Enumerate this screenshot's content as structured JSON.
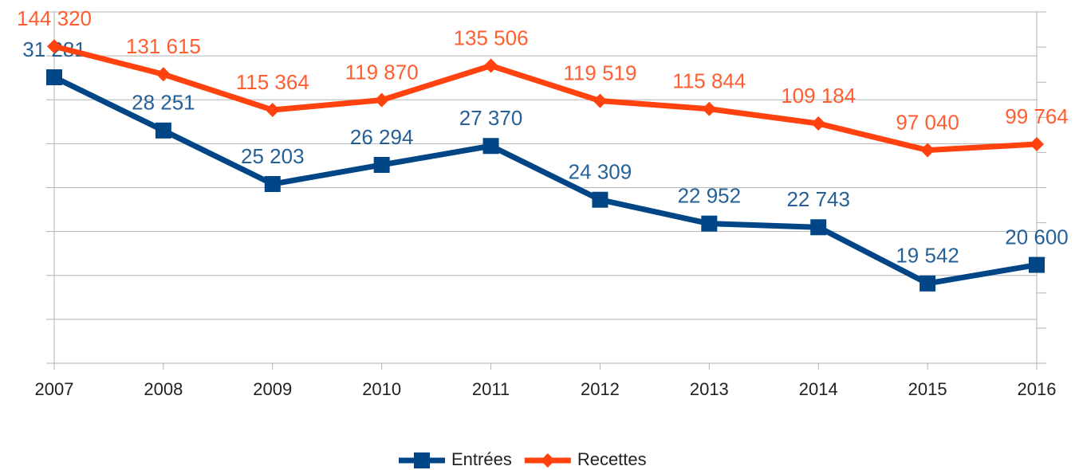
{
  "chart_data": {
    "type": "line",
    "categories": [
      "2007",
      "2008",
      "2009",
      "2010",
      "2011",
      "2012",
      "2013",
      "2014",
      "2015",
      "2016"
    ],
    "series": [
      {
        "name": "Entrées",
        "color": "#004586",
        "marker": "square",
        "values": [
          31281,
          28251,
          25203,
          26294,
          27370,
          24309,
          22952,
          22743,
          19542,
          20600
        ],
        "value_labels": [
          "31 281",
          "28 251",
          "25 203",
          "26 294",
          "27 370",
          "24 309",
          "22 952",
          "22 743",
          "19 542",
          "20 600"
        ]
      },
      {
        "name": "Recettes",
        "color": "#ff420e",
        "marker": "diamond",
        "axis": "y2",
        "values": [
          144320,
          131615,
          115364,
          119870,
          135506,
          119519,
          115844,
          109184,
          97040,
          99764
        ],
        "value_labels": [
          "144 320",
          "131 615",
          "115 364",
          "119 870",
          "135 506",
          "119 519",
          "115 844",
          "109 184",
          "97 040",
          "99 764"
        ]
      }
    ],
    "ylim": [
      15000,
      35000
    ],
    "yticks": [
      15000,
      17500,
      20000,
      22500,
      25000,
      27500,
      30000,
      32500,
      35000
    ],
    "y2lim": [
      0,
      160000
    ],
    "y2ticks": [
      0,
      16000,
      32000,
      48000,
      64000,
      80000,
      96000,
      112000,
      128000,
      144000,
      160000
    ],
    "grid": true,
    "legend": "bottom"
  }
}
